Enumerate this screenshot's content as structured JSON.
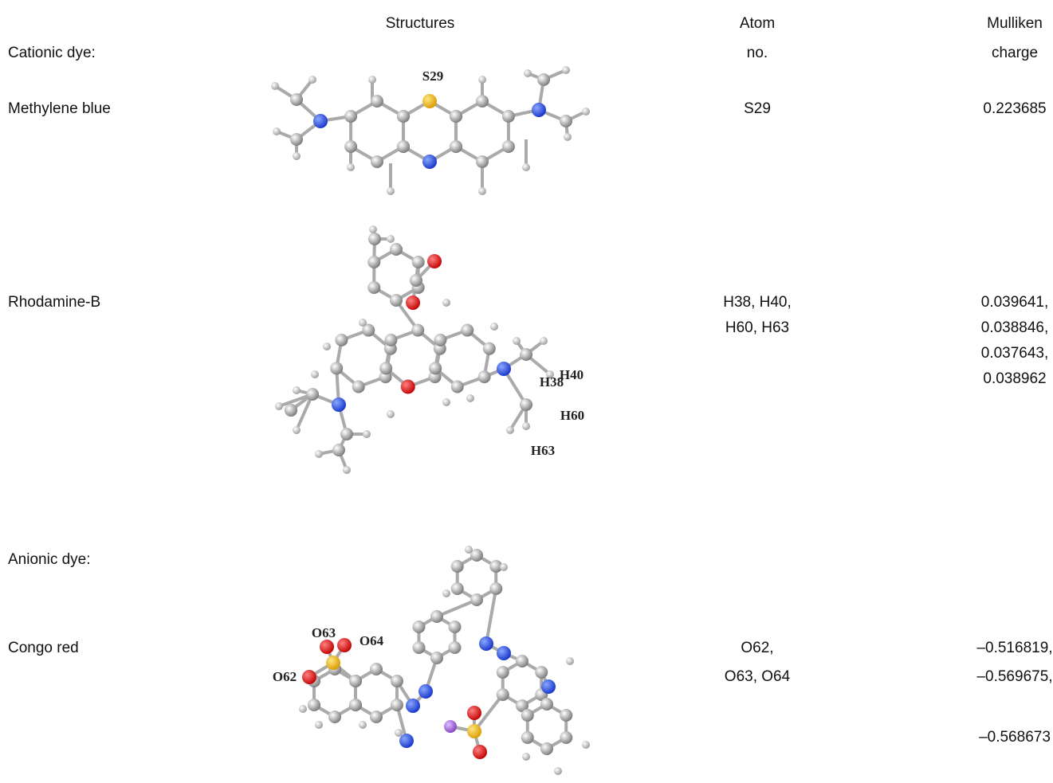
{
  "table": {
    "headers": {
      "structures": "Structures",
      "atom": [
        "Atom",
        "no."
      ],
      "charge": [
        "Mulliken",
        "charge"
      ]
    },
    "groups": [
      {
        "label": "Cationic dye:",
        "rows": [
          {
            "name": "Methylene blue",
            "structure_labels": [
              "S29"
            ],
            "atom_lines": [
              "S29"
            ],
            "charge_lines": [
              "0.223685"
            ]
          },
          {
            "name": "Rhodamine-B",
            "structure_labels": [
              "H40",
              "H38",
              "H60",
              "H63"
            ],
            "atom_lines": [
              "H38, H40,",
              "H60, H63"
            ],
            "charge_lines": [
              "0.039641,",
              "0.038846,",
              "0.037643,",
              "0.038962"
            ]
          }
        ]
      },
      {
        "label": "Anionic dye:",
        "rows": [
          {
            "name": "Congo red",
            "structure_labels": [
              "O63",
              "O64",
              "O62"
            ],
            "atom_lines": [
              "O62,",
              "O63, O64"
            ],
            "charge_lines": [
              "–0.516819,",
              "–0.569675,",
              "–0.568673"
            ]
          }
        ]
      }
    ]
  }
}
